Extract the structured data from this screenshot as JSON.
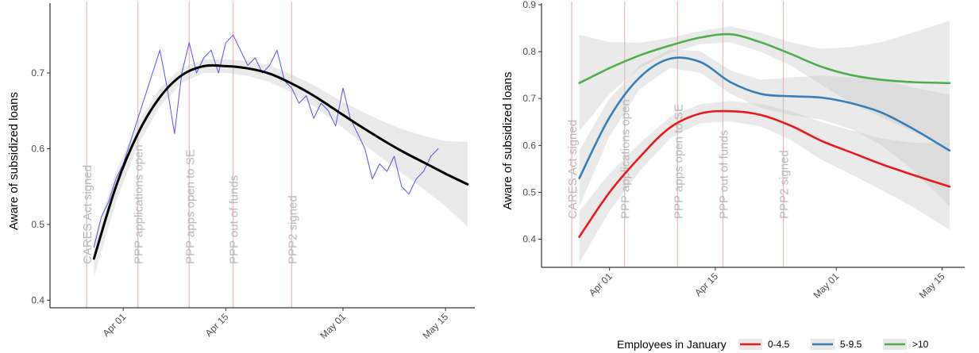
{
  "chart_data": [
    {
      "type": "line",
      "ylabel": "Aware of subsidized loans",
      "xlabel": "",
      "xlim": [
        "2020-03-22",
        "2020-05-19"
      ],
      "ylim": [
        0.39,
        0.79
      ],
      "yticks": [
        0.4,
        0.5,
        0.6,
        0.7
      ],
      "xticks": [
        "Apr 01",
        "Apr 15",
        "May 01",
        "May 15"
      ],
      "xtick_dates": [
        "2020-04-01",
        "2020-04-15",
        "2020-05-01",
        "2020-05-15"
      ],
      "grid": false,
      "events": [
        {
          "label": "CARES Act signed",
          "date": "2020-03-27"
        },
        {
          "label": "PPP applications open",
          "date": "2020-04-03"
        },
        {
          "label": "PPP apps open to SE",
          "date": "2020-04-10"
        },
        {
          "label": "PPP out of funds",
          "date": "2020-04-16"
        },
        {
          "label": "PPP2 signed",
          "date": "2020-04-24"
        }
      ],
      "series": [
        {
          "style": "raw",
          "color": "#5555ee",
          "x": [
            "2020-03-28",
            "2020-03-29",
            "2020-03-30",
            "2020-03-31",
            "2020-04-01",
            "2020-04-02",
            "2020-04-03",
            "2020-04-04",
            "2020-04-05",
            "2020-04-06",
            "2020-04-07",
            "2020-04-08",
            "2020-04-09",
            "2020-04-10",
            "2020-04-11",
            "2020-04-12",
            "2020-04-13",
            "2020-04-14",
            "2020-04-15",
            "2020-04-16",
            "2020-04-17",
            "2020-04-18",
            "2020-04-19",
            "2020-04-20",
            "2020-04-21",
            "2020-04-22",
            "2020-04-23",
            "2020-04-24",
            "2020-04-25",
            "2020-04-26",
            "2020-04-27",
            "2020-04-28",
            "2020-04-29",
            "2020-04-30",
            "2020-05-01",
            "2020-05-02",
            "2020-05-03",
            "2020-05-04",
            "2020-05-05",
            "2020-05-06",
            "2020-05-07",
            "2020-05-08",
            "2020-05-09",
            "2020-05-10",
            "2020-05-11",
            "2020-05-12",
            "2020-05-13",
            "2020-05-14"
          ],
          "values": [
            0.47,
            0.51,
            0.53,
            0.56,
            0.58,
            0.61,
            0.64,
            0.67,
            0.7,
            0.73,
            0.68,
            0.62,
            0.7,
            0.74,
            0.7,
            0.72,
            0.73,
            0.7,
            0.74,
            0.75,
            0.73,
            0.71,
            0.72,
            0.7,
            0.71,
            0.73,
            0.69,
            0.68,
            0.66,
            0.67,
            0.64,
            0.66,
            0.65,
            0.63,
            0.68,
            0.64,
            0.62,
            0.6,
            0.56,
            0.58,
            0.57,
            0.59,
            0.55,
            0.54,
            0.56,
            0.57,
            0.59,
            0.6
          ]
        },
        {
          "style": "smooth",
          "color": "#000000",
          "x": [
            "2020-03-28",
            "2020-03-31",
            "2020-04-03",
            "2020-04-06",
            "2020-04-09",
            "2020-04-12",
            "2020-04-15",
            "2020-04-18",
            "2020-04-21",
            "2020-04-24",
            "2020-04-27",
            "2020-04-30",
            "2020-05-03",
            "2020-05-06",
            "2020-05-09",
            "2020-05-12",
            "2020-05-15",
            "2020-05-18"
          ],
          "values": [
            0.455,
            0.55,
            0.62,
            0.668,
            0.697,
            0.709,
            0.709,
            0.706,
            0.699,
            0.686,
            0.67,
            0.651,
            0.632,
            0.614,
            0.597,
            0.582,
            0.567,
            0.553
          ],
          "band_low": [
            0.43,
            0.53,
            0.605,
            0.656,
            0.687,
            0.7,
            0.7,
            0.696,
            0.688,
            0.674,
            0.656,
            0.635,
            0.612,
            0.59,
            0.568,
            0.547,
            0.524,
            0.497
          ],
          "band_high": [
            0.48,
            0.57,
            0.635,
            0.68,
            0.707,
            0.718,
            0.718,
            0.716,
            0.71,
            0.698,
            0.684,
            0.667,
            0.652,
            0.638,
            0.626,
            0.617,
            0.61,
            0.609
          ]
        }
      ]
    },
    {
      "type": "line",
      "ylabel": "Aware of subsidized loans",
      "xlabel": "",
      "xlim": [
        "2020-03-23",
        "2020-05-18"
      ],
      "ylim": [
        0.34,
        0.9
      ],
      "yticks": [
        0.4,
        0.5,
        0.6,
        0.7,
        0.8,
        0.9
      ],
      "xticks": [
        "Apr 01",
        "Apr 15",
        "May 01",
        "May 15"
      ],
      "xtick_dates": [
        "2020-04-01",
        "2020-04-15",
        "2020-05-01",
        "2020-05-15"
      ],
      "grid": false,
      "legend_title": "Employees in January",
      "legend_position": "bottom",
      "events": [
        {
          "label": "CARES Act signed",
          "date": "2020-03-27"
        },
        {
          "label": "PPP applications open",
          "date": "2020-04-03"
        },
        {
          "label": "PPP apps open to SE",
          "date": "2020-04-10"
        },
        {
          "label": "PPP out of funds",
          "date": "2020-04-16"
        },
        {
          "label": "PPP2 signed",
          "date": "2020-04-24"
        }
      ],
      "series": [
        {
          "name": "0-4.5",
          "color": "#e41a1c",
          "x": [
            "2020-03-28",
            "2020-04-01",
            "2020-04-05",
            "2020-04-09",
            "2020-04-13",
            "2020-04-17",
            "2020-04-21",
            "2020-04-25",
            "2020-04-29",
            "2020-05-03",
            "2020-05-07",
            "2020-05-11",
            "2020-05-16"
          ],
          "values": [
            0.405,
            0.5,
            0.575,
            0.638,
            0.668,
            0.673,
            0.665,
            0.642,
            0.61,
            0.585,
            0.56,
            0.538,
            0.512
          ],
          "band_low": [
            0.35,
            0.46,
            0.545,
            0.615,
            0.648,
            0.651,
            0.641,
            0.611,
            0.57,
            0.538,
            0.505,
            0.47,
            0.42
          ],
          "band_high": [
            0.46,
            0.54,
            0.605,
            0.661,
            0.688,
            0.695,
            0.689,
            0.673,
            0.65,
            0.632,
            0.615,
            0.606,
            0.604
          ]
        },
        {
          "name": "5-9.5",
          "color": "#377eb8",
          "x": [
            "2020-03-28",
            "2020-04-01",
            "2020-04-05",
            "2020-04-09",
            "2020-04-13",
            "2020-04-17",
            "2020-04-21",
            "2020-04-25",
            "2020-04-29",
            "2020-05-03",
            "2020-05-07",
            "2020-05-11",
            "2020-05-16"
          ],
          "values": [
            0.53,
            0.66,
            0.745,
            0.785,
            0.778,
            0.735,
            0.71,
            0.705,
            0.702,
            0.69,
            0.67,
            0.637,
            0.589
          ],
          "band_low": [
            0.47,
            0.62,
            0.72,
            0.765,
            0.755,
            0.71,
            0.68,
            0.665,
            0.655,
            0.635,
            0.6,
            0.55,
            0.47
          ],
          "band_high": [
            0.59,
            0.7,
            0.77,
            0.805,
            0.801,
            0.76,
            0.74,
            0.745,
            0.749,
            0.745,
            0.74,
            0.724,
            0.708
          ]
        },
        {
          "name": ">10",
          "color": "#4daf4a",
          "x": [
            "2020-03-28",
            "2020-04-01",
            "2020-04-05",
            "2020-04-09",
            "2020-04-13",
            "2020-04-17",
            "2020-04-21",
            "2020-04-25",
            "2020-04-29",
            "2020-05-03",
            "2020-05-07",
            "2020-05-11",
            "2020-05-16"
          ],
          "values": [
            0.733,
            0.765,
            0.792,
            0.813,
            0.83,
            0.837,
            0.82,
            0.795,
            0.768,
            0.75,
            0.74,
            0.735,
            0.733
          ],
          "band_low": [
            0.63,
            0.71,
            0.765,
            0.797,
            0.816,
            0.82,
            0.8,
            0.77,
            0.73,
            0.69,
            0.66,
            0.63,
            0.6
          ],
          "band_high": [
            0.836,
            0.82,
            0.819,
            0.829,
            0.844,
            0.854,
            0.84,
            0.82,
            0.806,
            0.81,
            0.82,
            0.84,
            0.866
          ]
        }
      ]
    }
  ]
}
